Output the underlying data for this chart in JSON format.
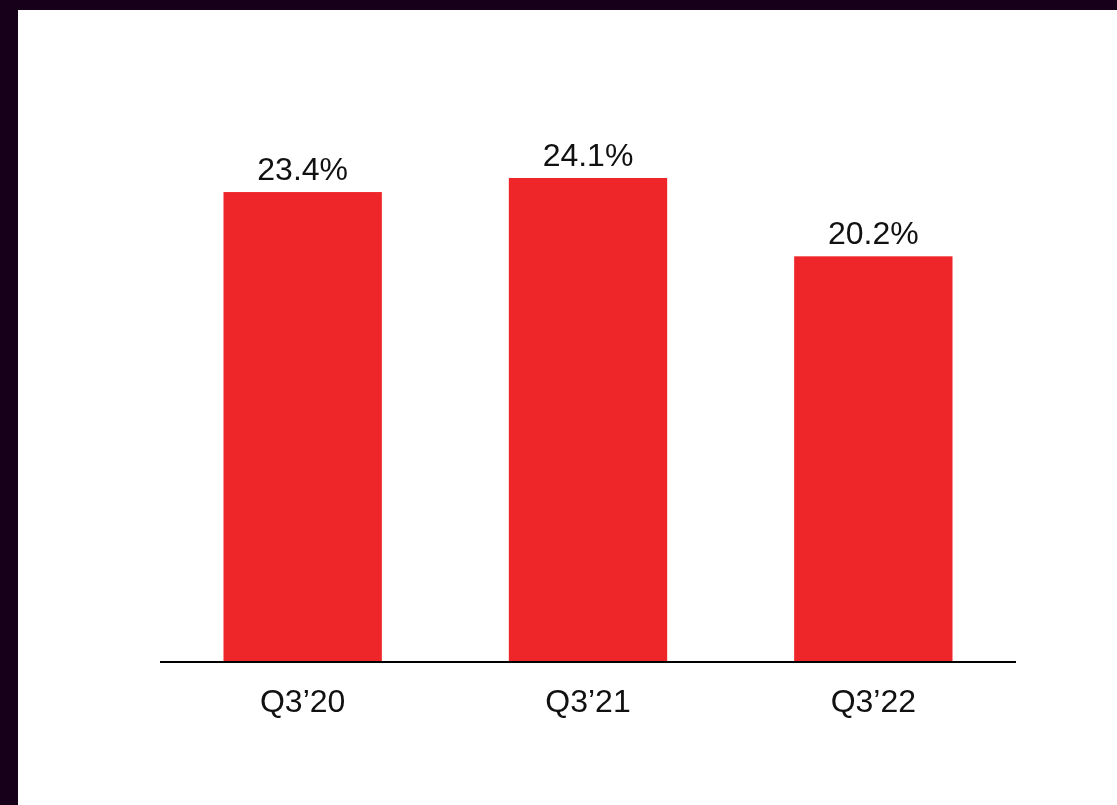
{
  "chart_data": {
    "type": "bar",
    "categories": [
      "Q3’20",
      "Q3’21",
      "Q3’22"
    ],
    "values": [
      23.4,
      24.1,
      20.2
    ],
    "value_labels": [
      "23.4%",
      "24.1%",
      "20.2%"
    ],
    "color": "#ef2629"
  }
}
